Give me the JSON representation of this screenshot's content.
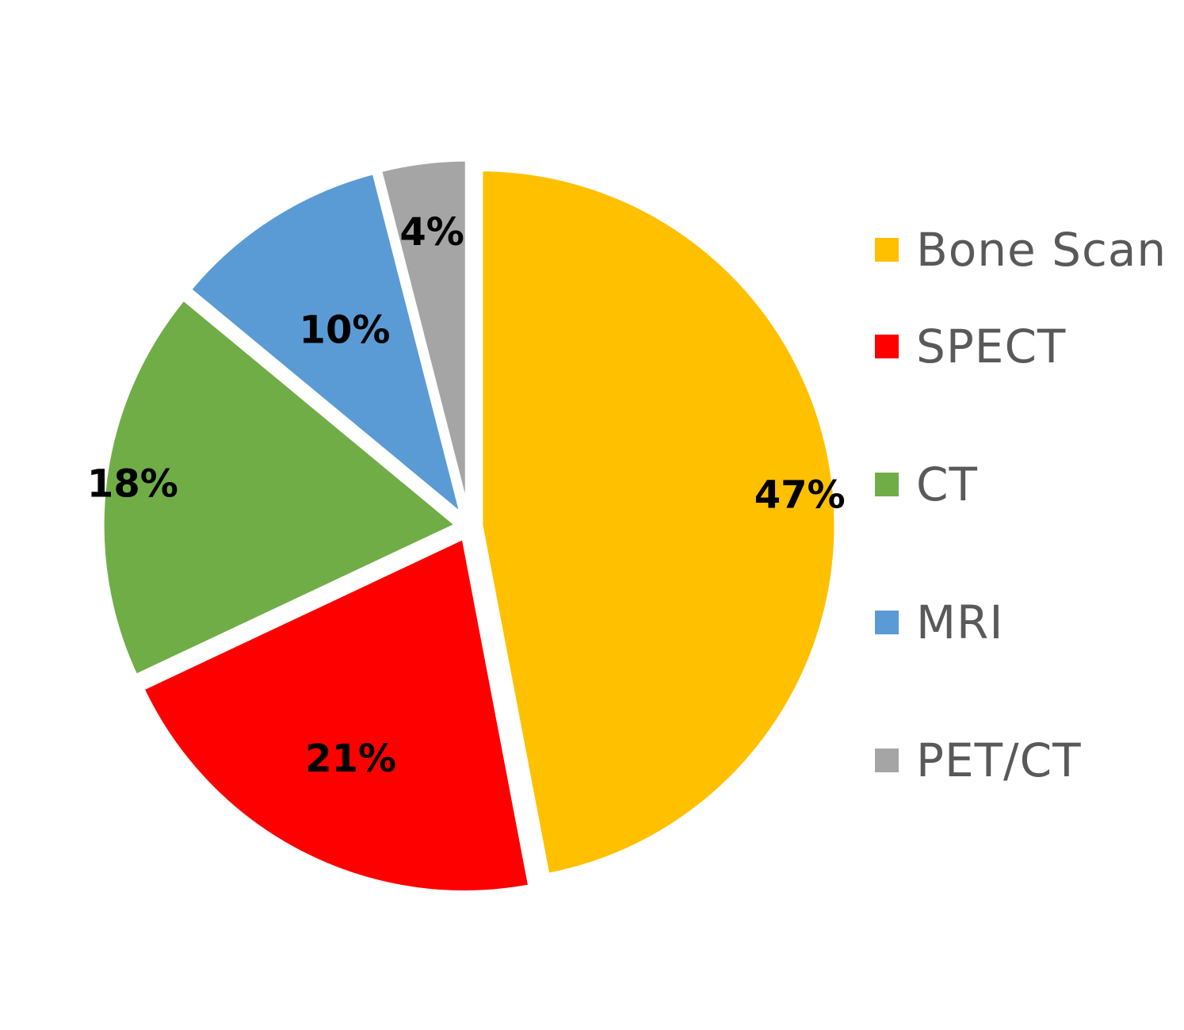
{
  "chart_data": {
    "type": "pie",
    "start_angle_deg": 0,
    "direction": "clockwise",
    "exploded": true,
    "legend_position": "right",
    "slices": [
      {
        "label": "Bone Scan",
        "value": 47,
        "display": "47%",
        "color": "#FFC000"
      },
      {
        "label": "SPECT",
        "value": 21,
        "display": "21%",
        "color": "#FF0000"
      },
      {
        "label": "CT",
        "value": 18,
        "display": "18%",
        "color": "#70AD47"
      },
      {
        "label": "MRI",
        "value": 10,
        "display": "10%",
        "color": "#5B9BD5"
      },
      {
        "label": "PET/CT",
        "value": 4,
        "display": "4%",
        "color": "#A5A5A5"
      }
    ]
  }
}
